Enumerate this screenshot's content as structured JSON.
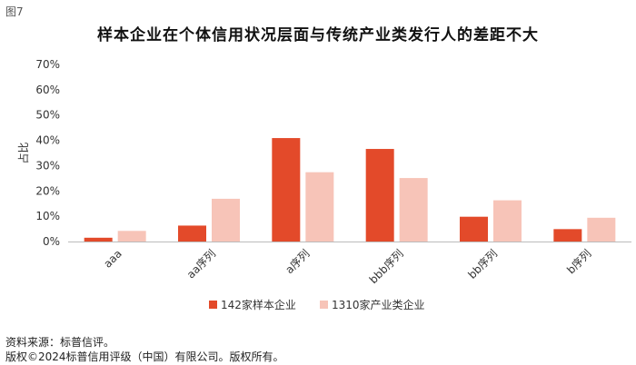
{
  "figure_label": "图7",
  "footer": {
    "source": "资料来源：标普信评。",
    "copyright": "版权©2024标普信用评级（中国）有限公司。版权所有。"
  },
  "colors": {
    "series1": "#e34a2a",
    "series2": "#f7c4b8",
    "axis": "#bbbbbb"
  },
  "chart_data": {
    "type": "bar",
    "title": "样本企业在个体信用状况层面与传统产业类发行人的差距不大",
    "xlabel": "",
    "ylabel": "占比",
    "ylim": [
      0,
      0.7
    ],
    "yticks": [
      "0%",
      "10%",
      "20%",
      "30%",
      "40%",
      "50%",
      "60%",
      "70%"
    ],
    "categories": [
      "aaa",
      "aa序列",
      "a序列",
      "bbb序列",
      "bb序列",
      "b序列"
    ],
    "series": [
      {
        "name": "142家样本企业",
        "values": [
          0.015,
          0.063,
          0.409,
          0.366,
          0.098,
          0.049
        ]
      },
      {
        "name": "1310家产业类企业",
        "values": [
          0.042,
          0.169,
          0.274,
          0.251,
          0.163,
          0.094
        ]
      }
    ],
    "legend": "bottom",
    "grid": false
  }
}
